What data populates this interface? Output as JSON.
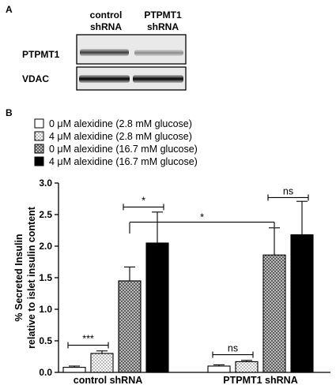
{
  "panel_a": {
    "letter": "A",
    "lane_labels": [
      {
        "line1": "control",
        "line2": "shRNA"
      },
      {
        "line1": "PTPMT1",
        "line2": "shRNA"
      }
    ],
    "rows": [
      {
        "label": "PTPMT1",
        "lane_intensity": [
          0.85,
          0.55
        ]
      },
      {
        "label": "VDAC",
        "lane_intensity": [
          1.0,
          1.0
        ]
      }
    ]
  },
  "panel_b": {
    "letter": "B"
  },
  "colors": {
    "bar_stroke": "#000000",
    "series_fill": [
      "#ffffff",
      "#f2f2f2",
      "#bdbdbd",
      "#000000"
    ],
    "series_pattern": [
      "none",
      "dots",
      "crosshatch",
      "none"
    ]
  },
  "chart_data": {
    "type": "bar",
    "title": "",
    "xlabel": "",
    "ylabel_line1": "% Secreted Insulin",
    "ylabel_line2": "relative to islet insulin content",
    "ylim": [
      0,
      3.0
    ],
    "yticks": [
      "0.0",
      "0.5",
      "1.0",
      "1.5",
      "2.0",
      "2.5",
      "3.0"
    ],
    "grid": false,
    "legend_position": "top-left",
    "categories": [
      "control shRNA",
      "PTPMT1 shRNA"
    ],
    "series": [
      {
        "name": "0 μM alexidine (2.8 mM glucose)",
        "values": [
          0.08,
          0.1
        ],
        "errors": [
          0.02,
          0.02
        ]
      },
      {
        "name": "4 μM alexidine (2.8 mM glucose)",
        "values": [
          0.3,
          0.17
        ],
        "errors": [
          0.04,
          0.02
        ]
      },
      {
        "name": "0 μM alexidine (16.7 mM glucose)",
        "values": [
          1.45,
          1.86
        ],
        "errors": [
          0.22,
          0.43
        ]
      },
      {
        "name": "4 μM alexidine (16.7 mM glucose)",
        "values": [
          2.05,
          2.18
        ],
        "errors": [
          0.49,
          0.53
        ]
      }
    ],
    "significance": [
      {
        "label": "***",
        "category": 0,
        "from_series": 0,
        "to_series": 1,
        "y": 0.43
      },
      {
        "label": "*",
        "category": 0,
        "from_series": 2,
        "to_series": 3,
        "y": 2.62
      },
      {
        "label": "*",
        "category": "between",
        "from": [
          0,
          2
        ],
        "to": [
          1,
          2
        ],
        "y": 2.38,
        "type": "bracket"
      },
      {
        "label": "ns",
        "category": 1,
        "from_series": 0,
        "to_series": 1,
        "y": 0.28
      },
      {
        "label": "ns",
        "category": 1,
        "from_series": 2,
        "to_series": 3,
        "y": 2.77
      }
    ]
  }
}
